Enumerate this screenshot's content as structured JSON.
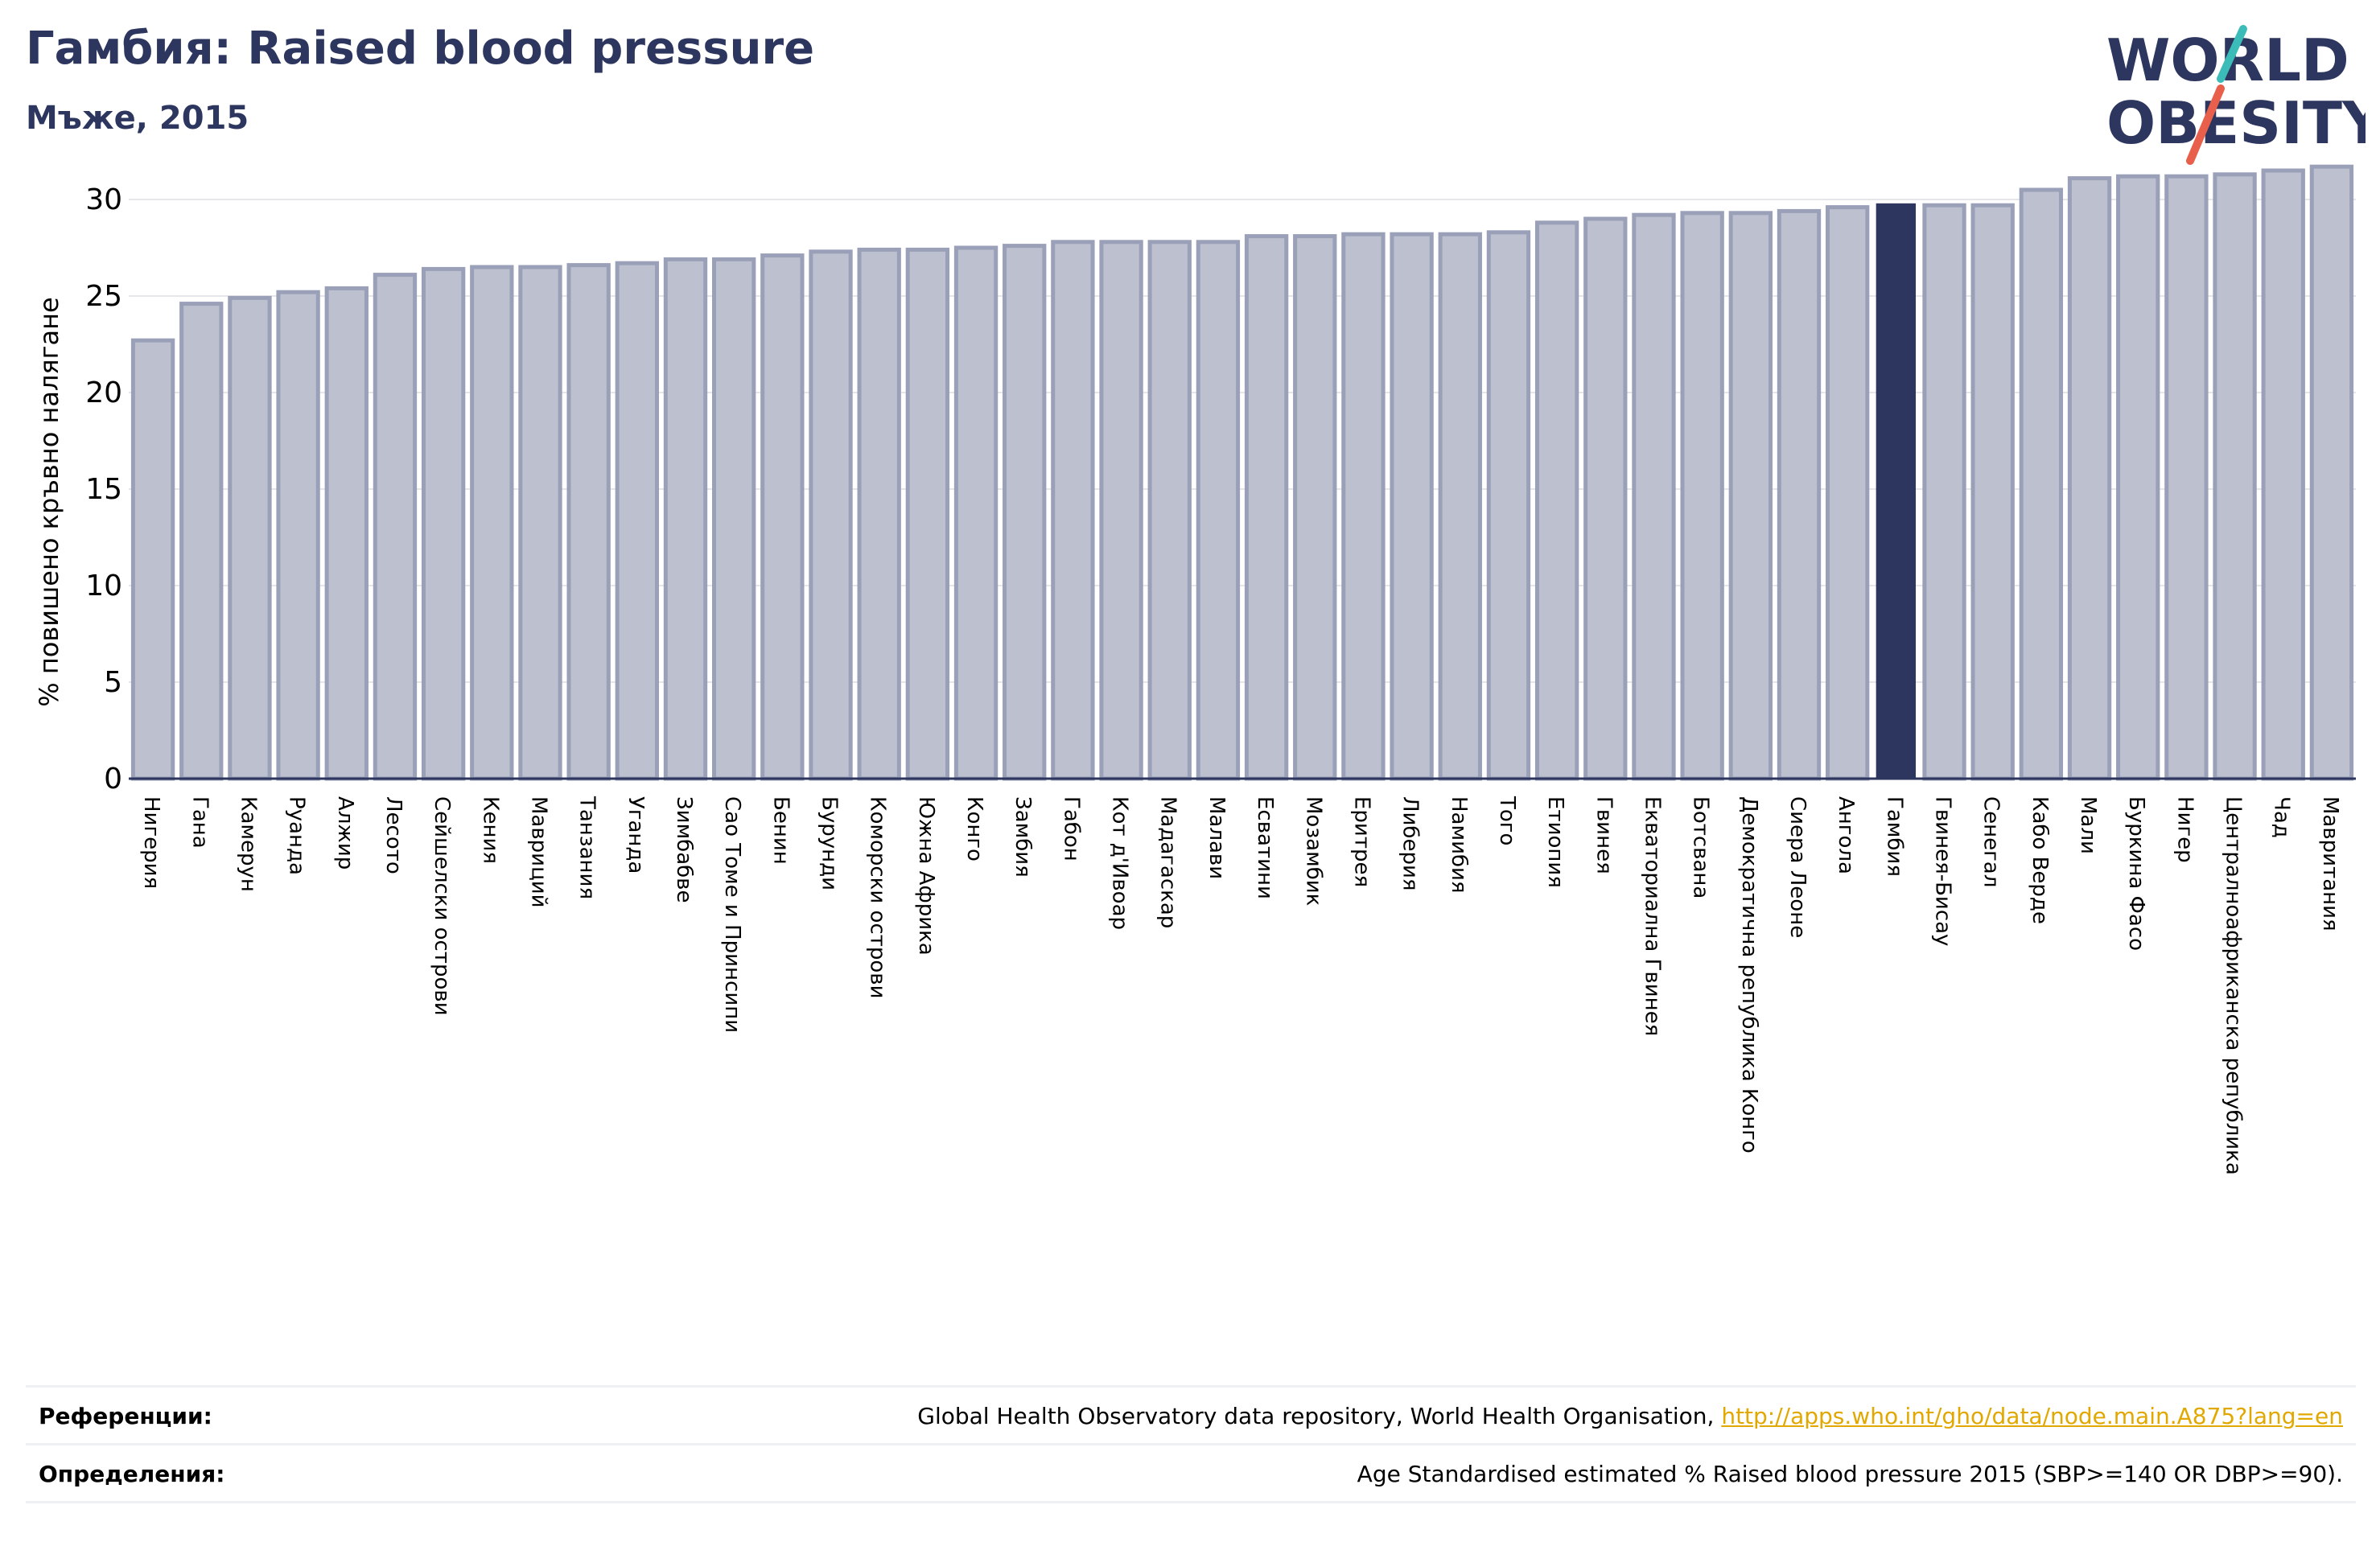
{
  "header": {
    "title": "Гамбия: Raised blood pressure",
    "subtitle": "Мъже, 2015"
  },
  "logo": {
    "line1": "WORLD",
    "line2": "OBESITY"
  },
  "colors": {
    "bar": "#bcc0cf",
    "bar_border": "#9aa0b8",
    "highlight": "#2d365e",
    "title": "#2d365e",
    "grid": "#e6e6ea",
    "link": "#e0a800",
    "logo_teal": "#3bbcb8",
    "logo_red": "#e8604c"
  },
  "chart_data": {
    "type": "bar",
    "ylabel": "% повишено кръвно налягане",
    "ylim": [
      0,
      32
    ],
    "yticks": [
      0,
      5,
      10,
      15,
      20,
      25,
      30
    ],
    "grid": true,
    "highlight": "Гамбия",
    "categories": [
      "Нигерия",
      "Гана",
      "Камерун",
      "Руанда",
      "Алжир",
      "Лесото",
      "Сейшелски острови",
      "Кения",
      "Мавриций",
      "Танзания",
      "Уганда",
      "Зимбабве",
      "Сао Томе и Принсипи",
      "Бенин",
      "Бурунди",
      "Коморски острови",
      "Южна Африка",
      "Конго",
      "Замбия",
      "Габон",
      "Кот д'Ивоар",
      "Мадагаскар",
      "Малави",
      "Есватини",
      "Мозамбик",
      "Еритрея",
      "Либерия",
      "Намибия",
      "Того",
      "Етиопия",
      "Гвинея",
      "Екваториална Гвинея",
      "Ботсвана",
      "Демократична република Конго",
      "Сиера Леоне",
      "Ангола",
      "Гамбия",
      "Гвинея-Бисау",
      "Сенегал",
      "Кабо Верде",
      "Мали",
      "Буркина Фасо",
      "Нигер",
      "Централноафриканска република",
      "Чад",
      "Мавритания"
    ],
    "values": [
      22.7,
      24.6,
      24.9,
      25.2,
      25.4,
      26.1,
      26.4,
      26.5,
      26.5,
      26.6,
      26.7,
      26.9,
      26.9,
      27.1,
      27.3,
      27.4,
      27.4,
      27.5,
      27.6,
      27.8,
      27.8,
      27.8,
      27.8,
      28.1,
      28.1,
      28.2,
      28.2,
      28.2,
      28.3,
      28.8,
      29.0,
      29.2,
      29.3,
      29.3,
      29.4,
      29.6,
      29.8,
      29.7,
      29.7,
      30.5,
      31.1,
      31.2,
      31.2,
      31.3,
      31.5,
      31.7
    ]
  },
  "footer": {
    "references_label": "Референции:",
    "references_text": "Global Health Observatory data repository, World Health Organisation,",
    "references_link": "http://apps.who.int/gho/data/node.main.A875?lang=en",
    "definitions_label": "Определения:",
    "definitions_text": "Age Standardised estimated % Raised blood pressure 2015 (SBP>=140 OR DBP>=90)."
  }
}
